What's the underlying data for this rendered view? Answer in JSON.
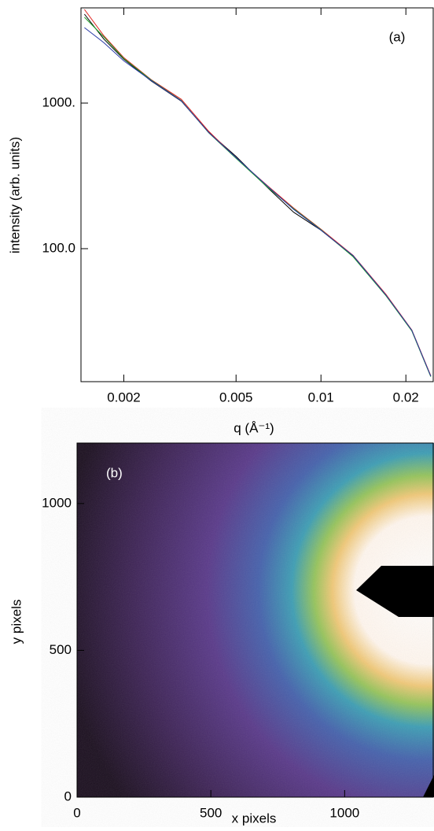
{
  "chart_data": [
    {
      "type": "line",
      "annotation": "(a)",
      "xlabel": "q (Å⁻¹)",
      "ylabel": "intensity (arb. units)",
      "xlog": true,
      "ylog": true,
      "x": [
        0.00145,
        0.0017,
        0.002,
        0.0025,
        0.0032,
        0.004,
        0.005,
        0.0065,
        0.008,
        0.01,
        0.013,
        0.017,
        0.021,
        0.0245
      ],
      "series": [
        {
          "color": "#000000",
          "values": [
            4080,
            2750,
            2000,
            1420,
            1030,
            630,
            430,
            260,
            178,
            134,
            89,
            48,
            27.4,
            13.3
          ]
        },
        {
          "color": "#e0201c",
          "values": [
            4400,
            2900,
            2050,
            1450,
            1060,
            640,
            420,
            268,
            190,
            136,
            90,
            48.5,
            27.6,
            13.4
          ]
        },
        {
          "color": "#1fa02a",
          "values": [
            3890,
            2850,
            2020,
            1440,
            1040,
            625,
            418,
            262,
            188,
            135,
            88,
            47.5,
            27.2,
            13.2
          ]
        },
        {
          "color": "#2a3aa8",
          "values": [
            3300,
            2600,
            1950,
            1430,
            1035,
            628,
            422,
            266,
            186,
            134,
            89.5,
            48,
            27.5,
            13.3
          ]
        }
      ],
      "xlim": [
        0.00141,
        0.025
      ],
      "ylim": [
        12.2,
        4510
      ],
      "xticks": [
        0.002,
        0.005,
        0.01,
        0.02
      ],
      "yticks": [
        {
          "value": 100,
          "label": "100.0"
        },
        {
          "value": 1000,
          "label": "1000."
        }
      ]
    },
    {
      "type": "image",
      "annotation": "(b)",
      "xlabel": "x pixels",
      "ylabel": "y pixels",
      "xlim": [
        0,
        1331
      ],
      "ylim": [
        0,
        1206
      ],
      "xticks": [
        0,
        500,
        1000
      ],
      "yticks": [
        0,
        500,
        1000
      ]
    }
  ]
}
